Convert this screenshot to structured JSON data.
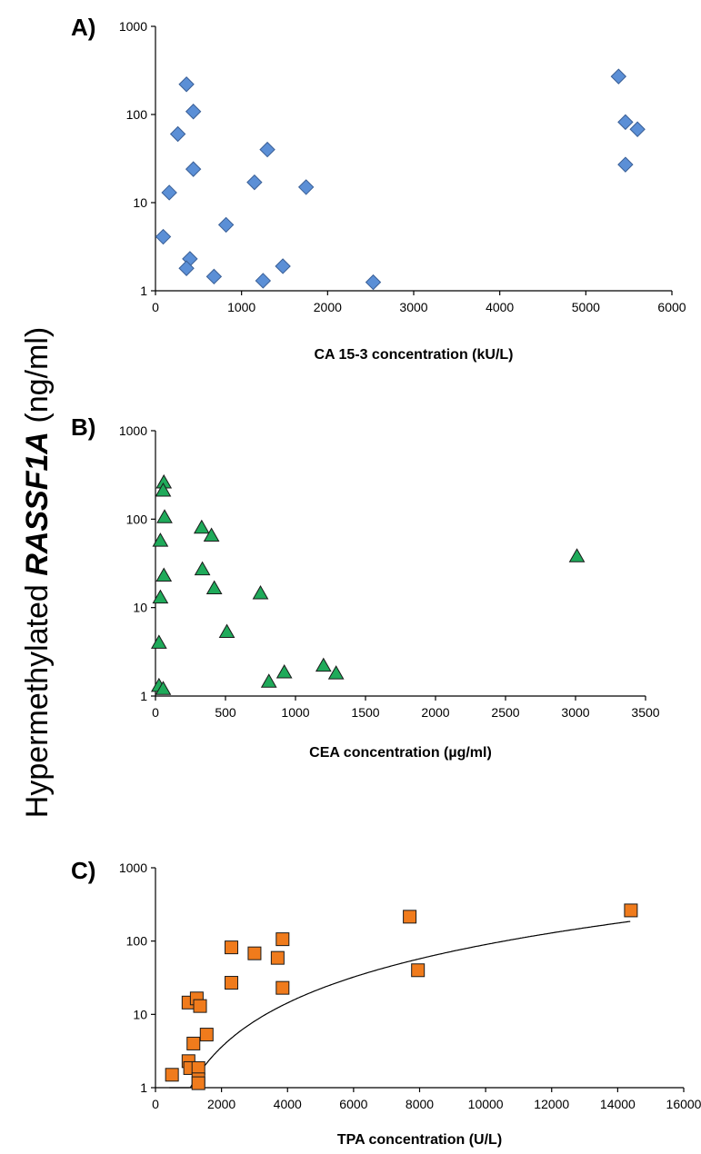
{
  "shared_ylabel": {
    "prefix": "Hypermethylated ",
    "italic": "RASSF1A",
    "suffix": " (ng/ml)"
  },
  "chart_data": [
    {
      "type": "scatter",
      "panel_label": "A)",
      "xlabel": "CA 15-3 concentration (kU/L)",
      "ylabel": "",
      "xlim": [
        0,
        6000
      ],
      "ylim": [
        1,
        1000
      ],
      "yscale": "log",
      "xticks": [
        0,
        1000,
        2000,
        3000,
        4000,
        5000,
        6000
      ],
      "yticks": [
        1,
        10,
        100,
        1000
      ],
      "marker": "diamond",
      "color": "#5b8fd6",
      "grid": false,
      "trendline": null,
      "points": [
        {
          "x": 360,
          "y": 220
        },
        {
          "x": 440,
          "y": 108
        },
        {
          "x": 260,
          "y": 60
        },
        {
          "x": 440,
          "y": 24
        },
        {
          "x": 160,
          "y": 13
        },
        {
          "x": 90,
          "y": 4.1
        },
        {
          "x": 820,
          "y": 5.6
        },
        {
          "x": 400,
          "y": 2.3
        },
        {
          "x": 360,
          "y": 1.8
        },
        {
          "x": 680,
          "y": 1.45
        },
        {
          "x": 1150,
          "y": 17
        },
        {
          "x": 1300,
          "y": 40
        },
        {
          "x": 1250,
          "y": 1.3
        },
        {
          "x": 1480,
          "y": 1.9
        },
        {
          "x": 1750,
          "y": 15
        },
        {
          "x": 2530,
          "y": 1.25
        },
        {
          "x": 5380,
          "y": 270
        },
        {
          "x": 5460,
          "y": 82
        },
        {
          "x": 5600,
          "y": 68
        },
        {
          "x": 5460,
          "y": 27
        }
      ]
    },
    {
      "type": "scatter",
      "panel_label": "B)",
      "xlabel": "CEA concentration (µg/ml)",
      "ylabel": "",
      "xlim": [
        0,
        3500
      ],
      "ylim": [
        1,
        1000
      ],
      "yscale": "log",
      "xticks": [
        0,
        500,
        1000,
        1500,
        2000,
        2500,
        3000,
        3500
      ],
      "yticks": [
        1,
        10,
        100,
        1000
      ],
      "marker": "triangle",
      "color": "#1faa5a",
      "grid": false,
      "trendline": null,
      "points": [
        {
          "x": 60,
          "y": 260
        },
        {
          "x": 55,
          "y": 210
        },
        {
          "x": 65,
          "y": 105
        },
        {
          "x": 35,
          "y": 57
        },
        {
          "x": 60,
          "y": 23
        },
        {
          "x": 35,
          "y": 13
        },
        {
          "x": 25,
          "y": 4
        },
        {
          "x": 25,
          "y": 1.3
        },
        {
          "x": 55,
          "y": 1.2
        },
        {
          "x": 330,
          "y": 80
        },
        {
          "x": 400,
          "y": 65
        },
        {
          "x": 335,
          "y": 27
        },
        {
          "x": 420,
          "y": 16.5
        },
        {
          "x": 510,
          "y": 5.3
        },
        {
          "x": 750,
          "y": 14.5
        },
        {
          "x": 810,
          "y": 1.45
        },
        {
          "x": 920,
          "y": 1.85
        },
        {
          "x": 1200,
          "y": 2.2
        },
        {
          "x": 1290,
          "y": 1.8
        },
        {
          "x": 3010,
          "y": 38
        }
      ]
    },
    {
      "type": "scatter",
      "panel_label": "C)",
      "xlabel": "TPA concentration (U/L)",
      "ylabel": "",
      "xlim": [
        0,
        16000
      ],
      "ylim": [
        1,
        1000
      ],
      "yscale": "log",
      "xticks": [
        0,
        2000,
        4000,
        6000,
        8000,
        10000,
        12000,
        14000,
        16000
      ],
      "yticks": [
        1,
        10,
        100,
        1000
      ],
      "marker": "square",
      "color": "#f07b1c",
      "grid": false,
      "trendline": "logarithmic",
      "points": [
        {
          "x": 14400,
          "y": 262
        },
        {
          "x": 7700,
          "y": 215
        },
        {
          "x": 7950,
          "y": 40
        },
        {
          "x": 2300,
          "y": 82
        },
        {
          "x": 3000,
          "y": 68
        },
        {
          "x": 3850,
          "y": 106
        },
        {
          "x": 3700,
          "y": 59
        },
        {
          "x": 3850,
          "y": 23
        },
        {
          "x": 2300,
          "y": 27
        },
        {
          "x": 1000,
          "y": 14.5
        },
        {
          "x": 1250,
          "y": 16.5
        },
        {
          "x": 1350,
          "y": 13
        },
        {
          "x": 1150,
          "y": 4
        },
        {
          "x": 1550,
          "y": 5.3
        },
        {
          "x": 1000,
          "y": 2.3
        },
        {
          "x": 1050,
          "y": 1.85
        },
        {
          "x": 1300,
          "y": 1.85
        },
        {
          "x": 1300,
          "y": 1.3
        },
        {
          "x": 1300,
          "y": 1.15
        },
        {
          "x": 500,
          "y": 1.5
        }
      ]
    }
  ]
}
